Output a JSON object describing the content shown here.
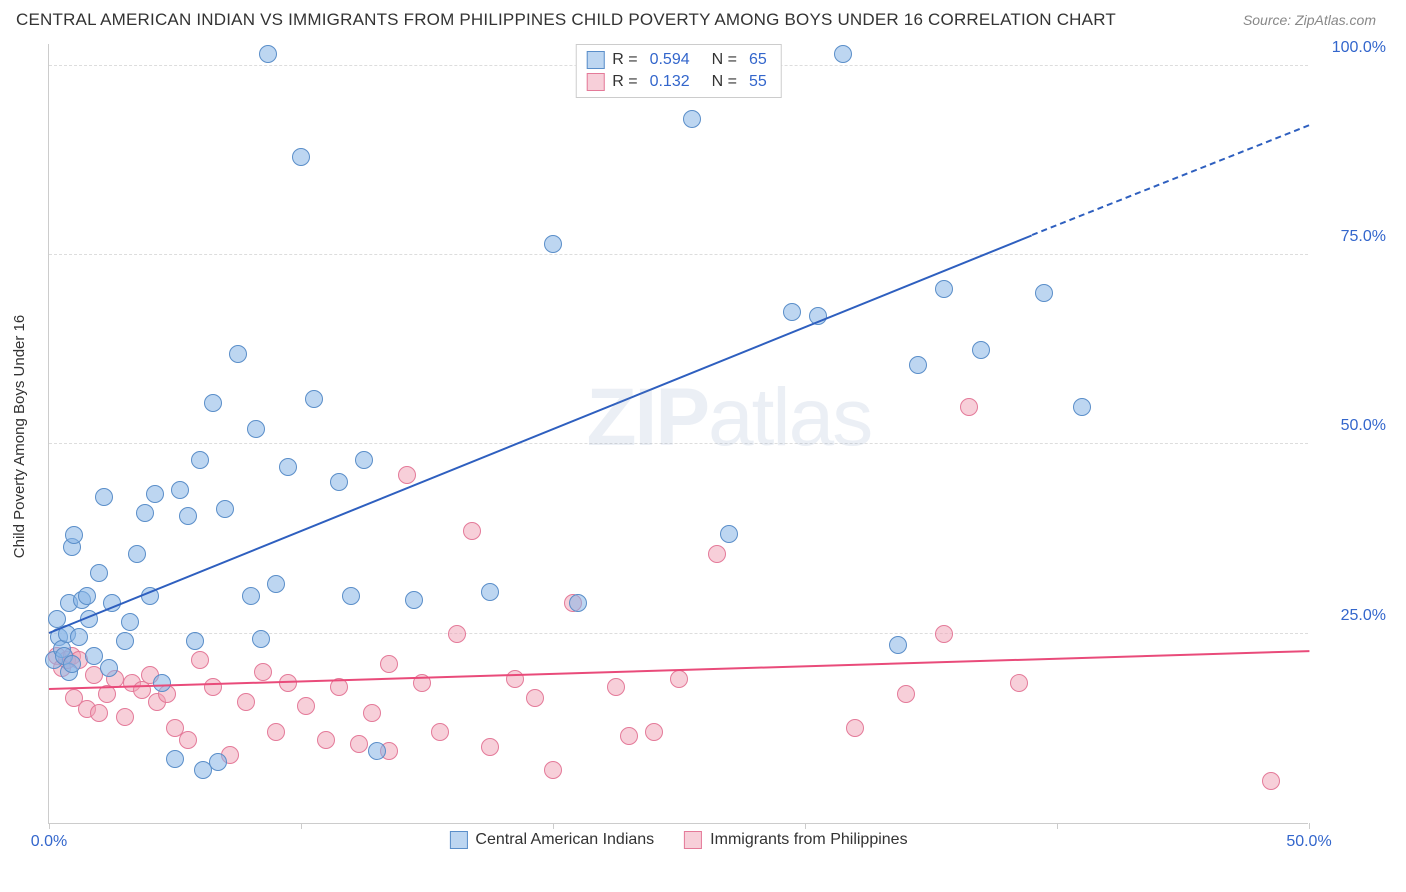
{
  "title": "CENTRAL AMERICAN INDIAN VS IMMIGRANTS FROM PHILIPPINES CHILD POVERTY AMONG BOYS UNDER 16 CORRELATION CHART",
  "source": "Source: ZipAtlas.com",
  "y_axis_label": "Child Poverty Among Boys Under 16",
  "watermark": "ZIPatlas",
  "chart": {
    "type": "scatter",
    "xlim": [
      0,
      50
    ],
    "ylim": [
      0,
      103
    ],
    "background_color": "#ffffff",
    "grid_color": "#dddddd",
    "axis_color": "#cccccc",
    "y_ticks": [
      {
        "value": 25,
        "label": "25.0%"
      },
      {
        "value": 50,
        "label": "50.0%"
      },
      {
        "value": 75,
        "label": "75.0%"
      },
      {
        "value": 100,
        "label": "100.0%"
      }
    ],
    "x_ticks": [
      {
        "value": 0,
        "label": "0.0%"
      },
      {
        "value": 10,
        "label": ""
      },
      {
        "value": 20,
        "label": ""
      },
      {
        "value": 30,
        "label": ""
      },
      {
        "value": 40,
        "label": ""
      },
      {
        "value": 50,
        "label": "50.0%"
      }
    ],
    "series_a": {
      "name": "Central American Indians",
      "color_fill": "rgba(135, 180, 230, 0.55)",
      "color_stroke": "#5a8ec9",
      "trend_color": "#2e5fbf",
      "trend_start": {
        "x": 0,
        "y": 25
      },
      "trend_solid_end": {
        "x": 39,
        "y": 77.5
      },
      "trend_dash_end": {
        "x": 50,
        "y": 92
      },
      "marker_radius": 9,
      "R": "0.594",
      "N": "65",
      "points": [
        [
          0.2,
          21.5
        ],
        [
          0.3,
          27
        ],
        [
          0.4,
          24.5
        ],
        [
          0.5,
          23
        ],
        [
          0.6,
          22
        ],
        [
          0.7,
          25
        ],
        [
          0.8,
          20
        ],
        [
          0.8,
          29
        ],
        [
          0.9,
          36.5
        ],
        [
          0.9,
          21
        ],
        [
          1.0,
          38
        ],
        [
          1.2,
          24.5
        ],
        [
          1.3,
          29.5
        ],
        [
          1.5,
          30
        ],
        [
          1.6,
          27
        ],
        [
          1.8,
          22
        ],
        [
          2.0,
          33
        ],
        [
          2.2,
          43
        ],
        [
          2.4,
          20.5
        ],
        [
          2.5,
          29
        ],
        [
          3.0,
          24
        ],
        [
          3.2,
          26.5
        ],
        [
          3.5,
          35.5
        ],
        [
          3.8,
          41
        ],
        [
          4.0,
          30
        ],
        [
          4.2,
          43.5
        ],
        [
          4.5,
          18.5
        ],
        [
          5.0,
          8.5
        ],
        [
          5.2,
          44
        ],
        [
          5.5,
          40.5
        ],
        [
          5.8,
          24
        ],
        [
          6.0,
          48
        ],
        [
          6.1,
          7.0
        ],
        [
          6.5,
          55.5
        ],
        [
          6.7,
          8.0
        ],
        [
          7.0,
          41.5
        ],
        [
          7.5,
          62
        ],
        [
          8.0,
          30
        ],
        [
          8.2,
          52
        ],
        [
          8.4,
          24.3
        ],
        [
          8.7,
          101.5
        ],
        [
          9.0,
          31.5
        ],
        [
          9.5,
          47
        ],
        [
          10.0,
          88
        ],
        [
          10.5,
          56
        ],
        [
          11.5,
          45
        ],
        [
          12.0,
          30
        ],
        [
          12.5,
          48
        ],
        [
          13,
          9.5
        ],
        [
          14.5,
          29.5
        ],
        [
          17.5,
          30.5
        ],
        [
          20,
          76.5
        ],
        [
          21,
          29
        ],
        [
          25.5,
          93
        ],
        [
          27,
          38.2
        ],
        [
          29.5,
          67.5
        ],
        [
          30.5,
          67
        ],
        [
          31.5,
          101.5
        ],
        [
          33.7,
          23.5
        ],
        [
          34.5,
          60.5
        ],
        [
          35.5,
          70.5
        ],
        [
          37,
          62.5
        ],
        [
          39.5,
          70
        ],
        [
          41,
          55
        ]
      ]
    },
    "series_b": {
      "name": "Immigrants from Philippines",
      "color_fill": "rgba(240, 160, 180, 0.5)",
      "color_stroke": "#e47a99",
      "trend_color": "#e94b7a",
      "trend_start": {
        "x": 0,
        "y": 17.5
      },
      "trend_end": {
        "x": 50,
        "y": 22.5
      },
      "marker_radius": 9,
      "R": "0.132",
      "N": "55",
      "points": [
        [
          0.3,
          22
        ],
        [
          0.5,
          20.5
        ],
        [
          0.7,
          21.5
        ],
        [
          0.9,
          22
        ],
        [
          1.0,
          16.5
        ],
        [
          1.2,
          21.5
        ],
        [
          1.5,
          15
        ],
        [
          1.8,
          19.5
        ],
        [
          2.0,
          14.5
        ],
        [
          2.3,
          17
        ],
        [
          2.6,
          19
        ],
        [
          3.0,
          14
        ],
        [
          3.3,
          18.5
        ],
        [
          3.7,
          17.5
        ],
        [
          4.0,
          19.5
        ],
        [
          4.3,
          16
        ],
        [
          4.7,
          17
        ],
        [
          5.0,
          12.5
        ],
        [
          5.5,
          11
        ],
        [
          6.0,
          21.5
        ],
        [
          6.5,
          18
        ],
        [
          7.2,
          9
        ],
        [
          7.8,
          16
        ],
        [
          8.5,
          20
        ],
        [
          9.0,
          12
        ],
        [
          9.5,
          18.5
        ],
        [
          10.2,
          15.5
        ],
        [
          11,
          11
        ],
        [
          11.5,
          18
        ],
        [
          12.3,
          10.5
        ],
        [
          12.8,
          14.5
        ],
        [
          13.5,
          21
        ],
        [
          13.5,
          9.5
        ],
        [
          14.2,
          46
        ],
        [
          14.8,
          18.5
        ],
        [
          15.5,
          12
        ],
        [
          16.2,
          25
        ],
        [
          16.8,
          38.5
        ],
        [
          17.5,
          10
        ],
        [
          18.5,
          19
        ],
        [
          19.3,
          16.5
        ],
        [
          20,
          7
        ],
        [
          20.8,
          29
        ],
        [
          22.5,
          18
        ],
        [
          23,
          11.5
        ],
        [
          24,
          12
        ],
        [
          25,
          19
        ],
        [
          26.5,
          35.5
        ],
        [
          32,
          12.5
        ],
        [
          34,
          17
        ],
        [
          35.5,
          25
        ],
        [
          36.5,
          55
        ],
        [
          38.5,
          18.5
        ],
        [
          48.5,
          5.5
        ]
      ]
    }
  },
  "legend_top": {
    "rows": [
      {
        "swatch_fill": "rgba(135, 180, 230, 0.55)",
        "swatch_stroke": "#5a8ec9",
        "r_label": "R =",
        "r_val": "0.594",
        "n_label": "N =",
        "n_val": "65"
      },
      {
        "swatch_fill": "rgba(240, 160, 180, 0.5)",
        "swatch_stroke": "#e47a99",
        "r_label": "R =",
        "r_val": "0.132",
        "n_label": "N =",
        "n_val": "55"
      }
    ]
  },
  "legend_bottom": {
    "items": [
      {
        "swatch_fill": "rgba(135, 180, 230, 0.55)",
        "swatch_stroke": "#5a8ec9",
        "label": "Central American Indians"
      },
      {
        "swatch_fill": "rgba(240, 160, 180, 0.5)",
        "swatch_stroke": "#e47a99",
        "label": "Immigrants from Philippines"
      }
    ]
  }
}
